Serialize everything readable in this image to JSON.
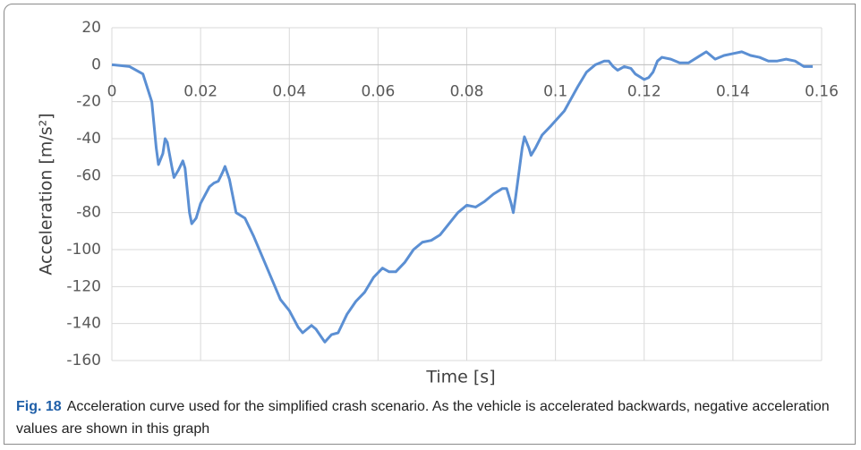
{
  "chart_data": {
    "type": "line",
    "x_label": "Time [s]",
    "y_label": "Acceleration [m/s²]",
    "caption_label": "Fig. 18",
    "caption": "Acceleration curve used for the simplified crash scenario. As the vehicle is accelerated backwards, negative acceleration values are shown in this graph",
    "x": [
      0,
      0.004,
      0.007,
      0.009,
      0.01,
      0.0105,
      0.0115,
      0.012,
      0.0125,
      0.0135,
      0.014,
      0.015,
      0.016,
      0.0165,
      0.0175,
      0.018,
      0.019,
      0.02,
      0.022,
      0.023,
      0.024,
      0.025,
      0.0255,
      0.0265,
      0.028,
      0.03,
      0.032,
      0.035,
      0.038,
      0.04,
      0.042,
      0.043,
      0.044,
      0.045,
      0.046,
      0.048,
      0.0495,
      0.051,
      0.053,
      0.055,
      0.057,
      0.059,
      0.061,
      0.0625,
      0.064,
      0.066,
      0.068,
      0.07,
      0.072,
      0.074,
      0.076,
      0.078,
      0.08,
      0.082,
      0.084,
      0.086,
      0.088,
      0.089,
      0.09,
      0.0905,
      0.091,
      0.0925,
      0.093,
      0.094,
      0.0945,
      0.0955,
      0.097,
      0.099,
      0.102,
      0.105,
      0.107,
      0.109,
      0.111,
      0.112,
      0.113,
      0.114,
      0.1155,
      0.117,
      0.118,
      0.12,
      0.121,
      0.122,
      0.123,
      0.124,
      0.126,
      0.128,
      0.13,
      0.132,
      0.134,
      0.136,
      0.138,
      0.14,
      0.142,
      0.144,
      0.146,
      0.148,
      0.15,
      0.152,
      0.154,
      0.156,
      0.158
    ],
    "series": [
      {
        "name": "Acceleration",
        "color": "#5b8fd3",
        "values": [
          0,
          -1,
          -5,
          -20,
          -45,
          -54,
          -48,
          -40,
          -42,
          -55,
          -61,
          -57,
          -52,
          -56,
          -80,
          -86,
          -83,
          -75,
          -66,
          -64,
          -63,
          -58,
          -55,
          -62,
          -80,
          -83,
          -93,
          -110,
          -127,
          -133,
          -142,
          -145,
          -143,
          -141,
          -143,
          -150,
          -146,
          -145,
          -135,
          -128,
          -123,
          -115,
          -110,
          -112,
          -112,
          -107,
          -100,
          -96,
          -95,
          -92,
          -86,
          -80,
          -76,
          -77,
          -74,
          -70,
          -67,
          -67,
          -75,
          -80,
          -72,
          -45,
          -39,
          -45,
          -49,
          -45,
          -38,
          -33,
          -25,
          -12,
          -4,
          0,
          2,
          2,
          -1,
          -3,
          -1,
          -2,
          -5,
          -8,
          -7,
          -4,
          2,
          4,
          3,
          1,
          1,
          4,
          7,
          3,
          5,
          6,
          7,
          5,
          4,
          2,
          2,
          3,
          2,
          -1,
          -1
        ]
      }
    ],
    "xlim": [
      0,
      0.16
    ],
    "xticks": [
      0,
      0.02,
      0.04,
      0.06,
      0.08,
      0.1,
      0.12,
      0.14,
      0.16
    ],
    "ylim": [
      -160,
      20
    ],
    "yticks": [
      -160,
      -140,
      -120,
      -100,
      -80,
      -60,
      -40,
      -20,
      0,
      20
    ],
    "grid": true
  }
}
